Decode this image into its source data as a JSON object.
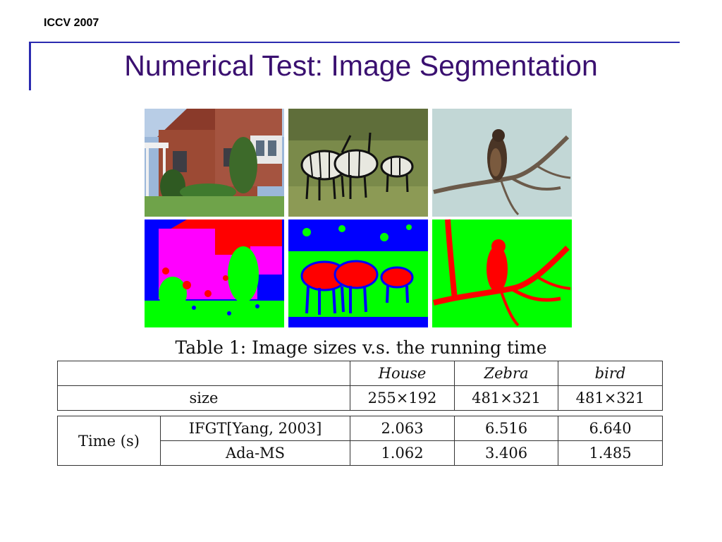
{
  "header": {
    "label": "ICCV 2007"
  },
  "slide": {
    "title": "Numerical Test: Image Segmentation"
  },
  "figure": {
    "images": [
      {
        "id": "house-photo",
        "kind": "photo"
      },
      {
        "id": "zebra-photo",
        "kind": "photo"
      },
      {
        "id": "bird-photo",
        "kind": "photo"
      },
      {
        "id": "house-segmentation",
        "kind": "segmentation"
      },
      {
        "id": "zebra-segmentation",
        "kind": "segmentation"
      },
      {
        "id": "bird-segmentation",
        "kind": "segmentation"
      }
    ],
    "colors": {
      "seg_blue": "#0000ff",
      "seg_green": "#00ff00",
      "seg_red": "#ff0000",
      "seg_magenta": "#ff00ff"
    }
  },
  "table": {
    "caption": "Table 1: Image sizes v.s. the running time",
    "columns": [
      "House",
      "Zebra",
      "bird"
    ],
    "size_row": {
      "label": "size",
      "values": [
        "255×192",
        "481×321",
        "481×321"
      ]
    },
    "time_group": "Time (s)",
    "time_rows": [
      {
        "method": "IFGT[Yang, 2003]",
        "values": [
          "2.063",
          "6.516",
          "6.640"
        ]
      },
      {
        "method": "Ada-MS",
        "values": [
          "1.062",
          "3.406",
          "1.485"
        ]
      }
    ]
  }
}
